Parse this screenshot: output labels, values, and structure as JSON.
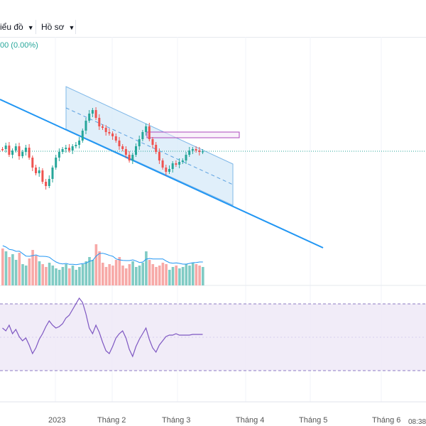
{
  "toolbar": {
    "chart_label": "iểu đồ",
    "profile_label": "Hồ sơ"
  },
  "header": {
    "price_change": "00 (0.00%)"
  },
  "status": {
    "clock": "08:38"
  },
  "colors": {
    "up": "#26a69a",
    "down": "#ef5350",
    "up_vol": "#80cbc4",
    "down_vol": "#f7a9a7",
    "trend": "#2196f3",
    "channel_fill": "#d6eaf8",
    "rsi_line": "#7e57c2",
    "rsi_band": "#ede7f6",
    "zone_border": "#ab47bc"
  },
  "chart_data": {
    "type": "candlestick",
    "x_axis_labels": [
      "2023",
      "Tháng 2",
      "Tháng 3",
      "Tháng 4",
      "Tháng 5",
      "Tháng 6"
    ],
    "candles_visible": 61,
    "rsi_levels": [
      70,
      30
    ],
    "indicators": [
      "volume",
      "rsi"
    ]
  }
}
